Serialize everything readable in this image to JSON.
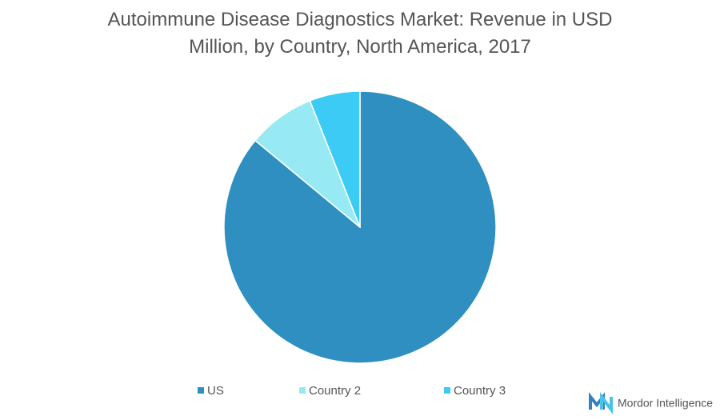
{
  "chart_data": {
    "type": "pie",
    "title": "Autoimmune Disease Diagnostics Market: Revenue in USD Million, by Country, North America, 2017",
    "categories": [
      "US",
      "Country 2",
      "Country 3"
    ],
    "values": [
      86,
      8,
      6
    ],
    "colors": [
      "#2e8fc0",
      "#97eaf3",
      "#3ccbf4"
    ],
    "legend": "bottom"
  },
  "logo": {
    "text": "Mordor Intelligence"
  }
}
